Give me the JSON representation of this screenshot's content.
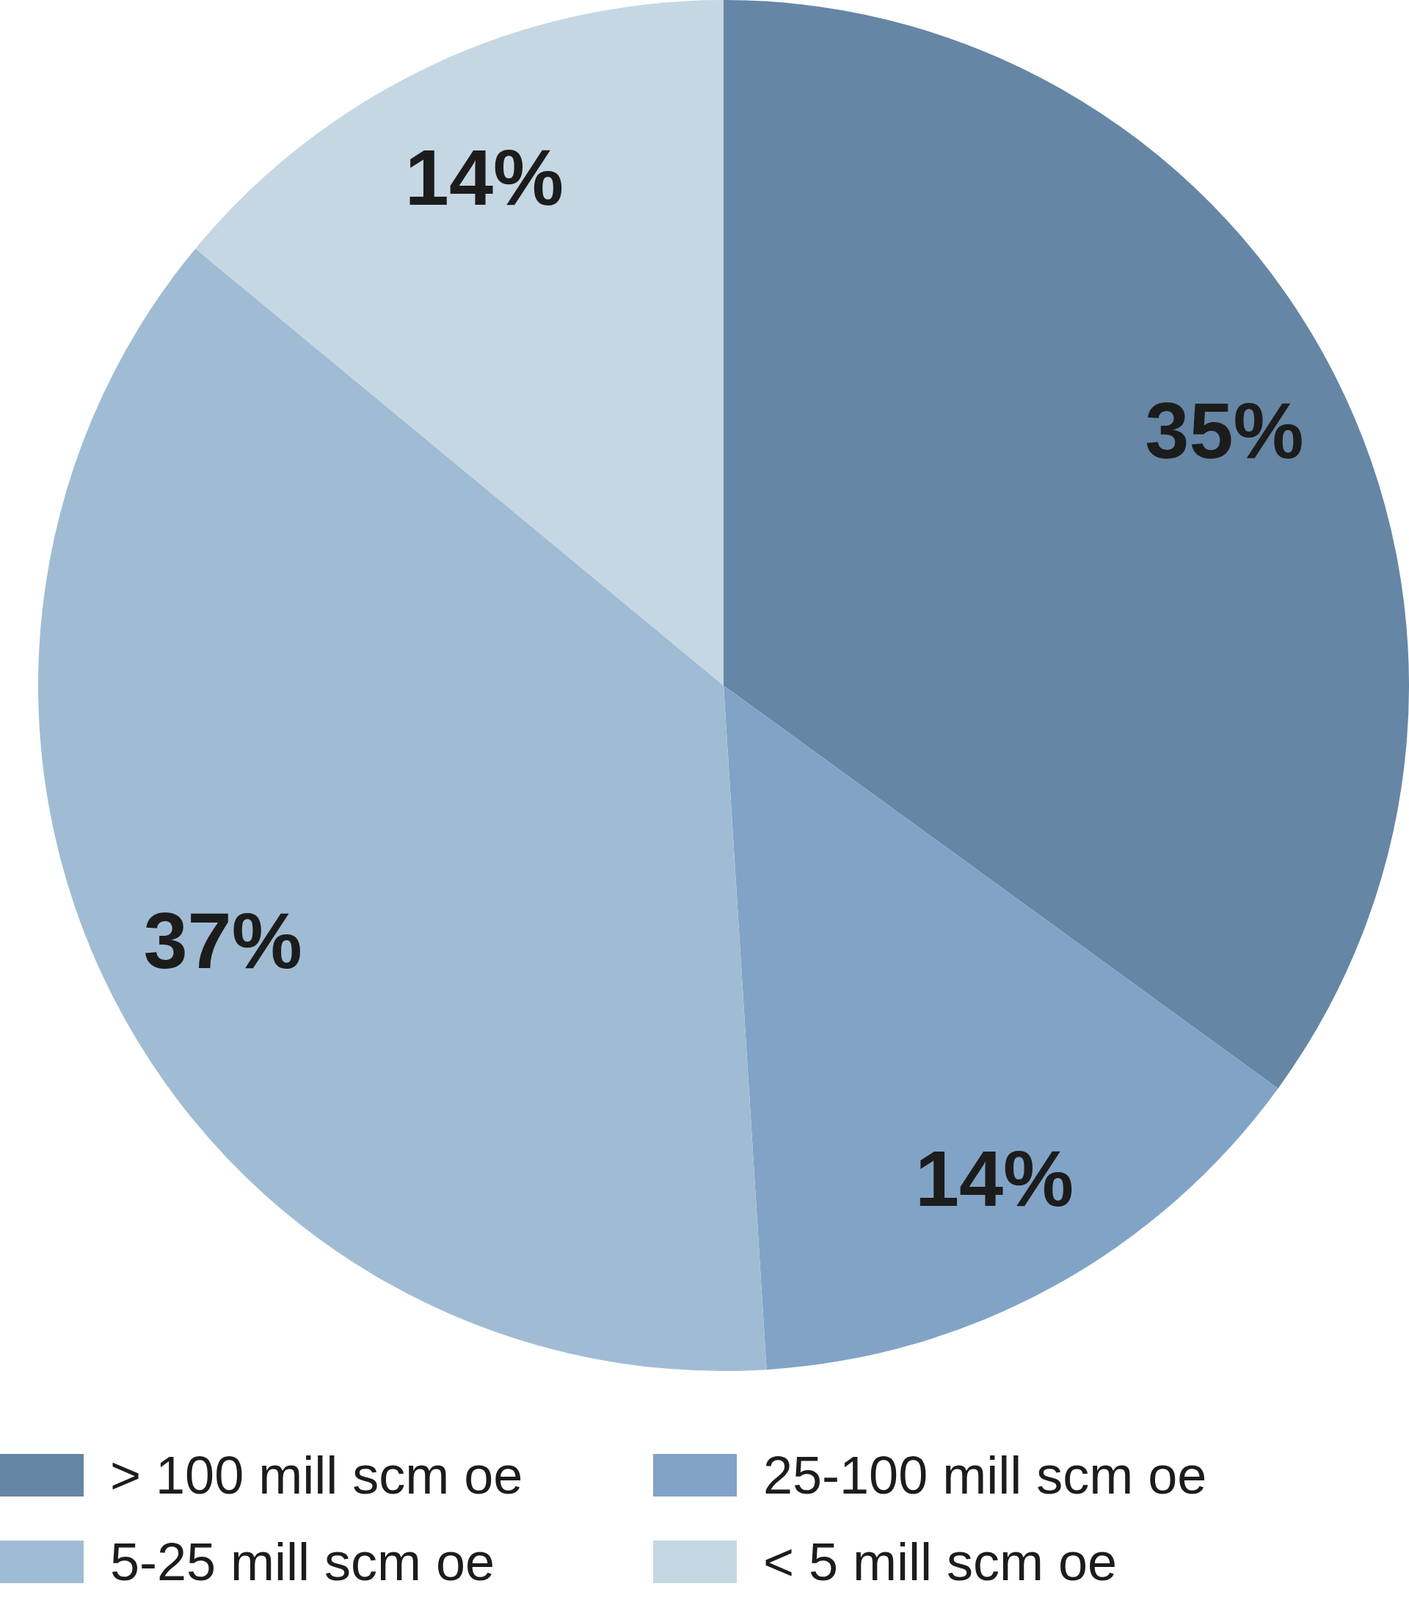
{
  "chart_data": {
    "type": "pie",
    "categories": [
      "> 100 mill scm oe",
      "25-100 mill scm oe",
      "5-25 mill scm oe",
      "< 5 mill scm oe"
    ],
    "values": [
      35,
      14,
      37,
      14
    ],
    "value_labels": [
      "35%",
      "14%",
      "37%",
      "14%"
    ],
    "colors": [
      "#6586a5",
      "#81a4c6",
      "#a0bcd4",
      "#c5d7e3"
    ],
    "data_labels": true,
    "legend": "bottom"
  }
}
